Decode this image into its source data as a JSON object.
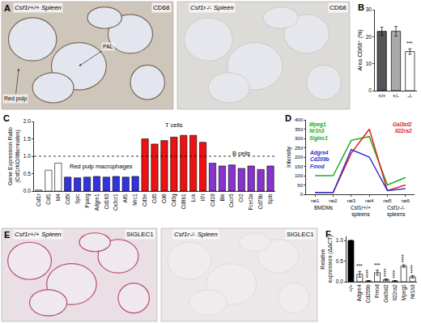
{
  "images": [
    {
      "panel": "A",
      "tiles": [
        {
          "title": "Csf1r+/+ Spleen",
          "stain": "CD68",
          "notes": [
            "PAL",
            "Red pulp"
          ]
        },
        {
          "title": "Csf1r-/- Spleen",
          "stain": "CD68"
        }
      ]
    },
    {
      "panel": "E",
      "tiles": [
        {
          "title": "Csf1r+/+ Spleen",
          "stain": "SIGLEC1"
        },
        {
          "title": "Csf1r-/- Spleen",
          "stain": "SIGLEC1"
        }
      ]
    }
  ],
  "chart_data": [
    {
      "panel": "B",
      "type": "bar",
      "categories": [
        "+/+",
        "+/-",
        "-/-"
      ],
      "values": [
        22,
        22,
        14.5
      ],
      "errors": [
        1.5,
        1.8,
        1
      ],
      "colors": [
        "#555555",
        "#aaaaaa",
        "#ffffff"
      ],
      "significance": [
        null,
        null,
        "***"
      ],
      "y_label": "Area CD68⁺ (%)",
      "ylim": [
        0,
        30
      ],
      "yticks": [
        0,
        10,
        20,
        30
      ]
    },
    {
      "panel": "C",
      "type": "bar",
      "y_label": "Gene Expression Ratio\n(Csf1rKO/littermates)",
      "threshold": 1,
      "groups": [
        {
          "color": "#ffffff",
          "categories": [
            "Csf1r",
            "Csf1",
            "Id4"
          ],
          "values": [
            0.03,
            0.6,
            0.8
          ]
        },
        {
          "name": "Red pulp macrophages",
          "color": "#3333dd",
          "categories": [
            "Cd5l",
            "Spic",
            "Pparg",
            "Adgre1",
            "Cd163",
            "Cx3cr1",
            "Aif1",
            "Mrc1"
          ],
          "values": [
            0.4,
            0.38,
            0.4,
            0.42,
            0.4,
            0.42,
            0.4,
            0.42
          ]
        },
        {
          "name": "T cells",
          "color": "#ee1111",
          "categories": [
            "Cd3e",
            "Cd5",
            "Cd6",
            "Cd3g",
            "Cd8b1",
            "Lck",
            "Il7r"
          ],
          "values": [
            1.5,
            1.35,
            1.45,
            1.55,
            1.6,
            1.6,
            1.4
          ]
        },
        {
          "name": "B cells",
          "color": "#8833cc",
          "categories": [
            "Cd19",
            "Blk",
            "Cxcr5",
            "Cr2",
            "Fcer2a",
            "Cd79b",
            "Spib"
          ],
          "values": [
            0.8,
            0.72,
            0.75,
            0.65,
            0.72,
            0.62,
            0.72
          ]
        }
      ],
      "ylim": [
        0,
        2
      ],
      "yticks": [
        {
          "value": 0,
          "label": "0.0"
        },
        0.5,
        {
          "value": 1,
          "label": "1.0"
        },
        1.5,
        {
          "value": 2,
          "label": "2.0"
        }
      ]
    },
    {
      "panel": "D",
      "type": "line",
      "y_label": "Intensity",
      "categories": [
        "rat1",
        "rat2",
        "rat3",
        "rat4",
        "rat5",
        "rat6"
      ],
      "groups": [
        {
          "label": "BMDMs",
          "categories": [
            "rat1",
            "rat2"
          ]
        },
        {
          "label": "Csf1r+/+\nspleens",
          "categories": [
            "rat3",
            "rat4"
          ]
        },
        {
          "label": "Csf1r-/-\nspleens",
          "categories": [
            "rat5",
            "rat6"
          ]
        }
      ],
      "series": [
        {
          "name": "Mpeg1\nNr1h3\nSiglec1",
          "color": "#22aa22",
          "values": [
            100,
            100,
            290,
            310,
            50,
            90
          ]
        },
        {
          "name": "Gal3st2\nIl22ra2",
          "color": "#dd2222",
          "values": [
            10,
            10,
            220,
            350,
            20,
            50
          ]
        },
        {
          "name": "Adgre4\nCd209b\nFmod",
          "color": "#3333cc",
          "values": [
            10,
            10,
            240,
            200,
            20,
            30
          ]
        }
      ],
      "ylim": [
        0,
        400
      ],
      "yticks": [
        0,
        50,
        100,
        150,
        200,
        250,
        300,
        350,
        400
      ]
    },
    {
      "panel": "F",
      "type": "bar",
      "y_label": "Relative\nexpression (ΔΔCT)",
      "categories": [
        "+/+",
        "Adgre4",
        "Cd209b",
        "Fmod",
        "Gal3st2",
        "Il22ra2",
        "Mpeg1",
        "Nr1h3"
      ],
      "values": [
        1,
        0.18,
        0.02,
        0.22,
        0.05,
        0.02,
        0.38,
        0.12
      ],
      "errors": [
        0,
        0.07,
        0.01,
        0.06,
        0.02,
        0.01,
        0.03,
        0.03
      ],
      "colors": [
        "#000000",
        "#ffffff",
        "#ffffff",
        "#ffffff",
        "#ffffff",
        "#ffffff",
        "#ffffff",
        "#ffffff"
      ],
      "significance": [
        null,
        "***",
        "****",
        "***",
        "****",
        "****",
        "****",
        "****"
      ],
      "ylim": [
        0,
        1.1
      ],
      "yticks": [
        {
          "value": 0,
          "label": "0.0"
        },
        0.5,
        {
          "value": 1,
          "label": "1.0"
        }
      ]
    }
  ]
}
